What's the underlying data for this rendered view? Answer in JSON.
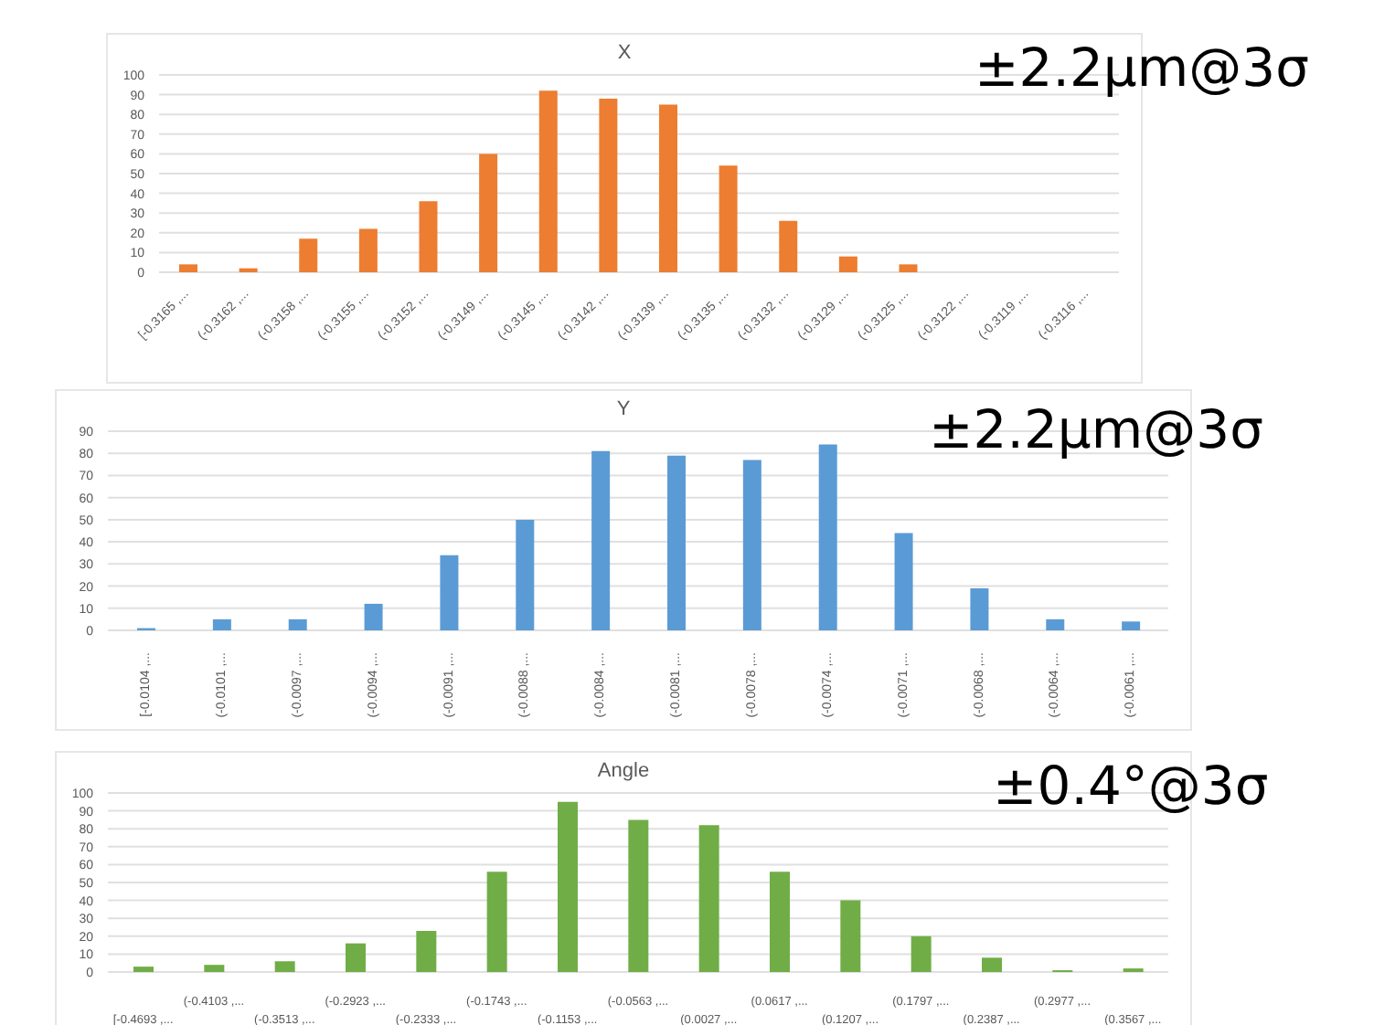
{
  "chart_data": [
    {
      "type": "bar",
      "title": "X",
      "categories": [
        "[-0.3165 ,...",
        "(-0.3162 ,...",
        "(-0.3158 ,...",
        "(-0.3155 ,...",
        "(-0.3152 ,...",
        "(-0.3149 ,...",
        "(-0.3145 ,...",
        "(-0.3142 ,...",
        "(-0.3139 ,...",
        "(-0.3135 ,...",
        "(-0.3132 ,...",
        "(-0.3129 ,...",
        "(-0.3125 ,...",
        "(-0.3122 ,...",
        "(-0.3119 ,...",
        "(-0.3116 ,..."
      ],
      "values": [
        4,
        2,
        17,
        22,
        36,
        60,
        92,
        88,
        85,
        54,
        26,
        8,
        4,
        0,
        0,
        0
      ],
      "color": "#ed7d31",
      "ylim": [
        0,
        100
      ],
      "yticks": [
        0,
        10,
        20,
        30,
        40,
        50,
        60,
        70,
        80,
        90,
        100
      ],
      "grid": "y",
      "legend": false,
      "annotations": [
        "±2.2μm@3σ"
      ]
    },
    {
      "type": "bar",
      "title": "Y",
      "categories": [
        "[-0.0104 ,...",
        "(-0.0101 ,...",
        "(-0.0097 ,...",
        "(-0.0094 ,...",
        "(-0.0091 ,...",
        "(-0.0088 ,...",
        "(-0.0084 ,...",
        "(-0.0081 ,...",
        "(-0.0078 ,...",
        "(-0.0074 ,...",
        "(-0.0071 ,...",
        "(-0.0068 ,...",
        "(-0.0064 ,...",
        "(-0.0061 ,..."
      ],
      "values": [
        1,
        5,
        5,
        12,
        34,
        50,
        81,
        79,
        77,
        84,
        44,
        19,
        5,
        4
      ],
      "color": "#5b9bd5",
      "ylim": [
        0,
        90
      ],
      "yticks": [
        0,
        10,
        20,
        30,
        40,
        50,
        60,
        70,
        80,
        90
      ],
      "grid": "y",
      "legend": false,
      "annotations": [
        "±2.2μm@3σ"
      ]
    },
    {
      "type": "bar",
      "title": "Angle",
      "categories": [
        "[-0.4693 ,...",
        "(-0.4103 ,...",
        "(-0.3513 ,...",
        "(-0.2923 ,...",
        "(-0.2333 ,...",
        "(-0.1743 ,...",
        "(-0.1153 ,...",
        "(-0.0563 ,...",
        "(0.0027 ,...",
        "(0.0617 ,...",
        "(0.1207 ,...",
        "(0.1797 ,...",
        "(0.2387 ,...",
        "(0.2977 ,...",
        "(0.3567 ,..."
      ],
      "values": [
        3,
        4,
        6,
        16,
        23,
        56,
        95,
        85,
        82,
        56,
        40,
        20,
        8,
        1,
        2
      ],
      "color": "#70ad47",
      "ylim": [
        0,
        100
      ],
      "yticks": [
        0,
        10,
        20,
        30,
        40,
        50,
        60,
        70,
        80,
        90,
        100
      ],
      "grid": "y",
      "legend": false,
      "annotations": [
        "±0.4°@3σ"
      ]
    }
  ]
}
